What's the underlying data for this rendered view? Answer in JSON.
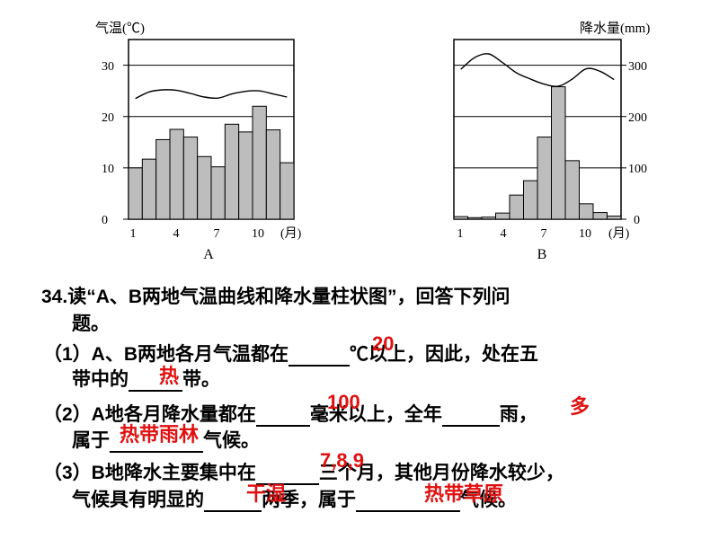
{
  "chart_data": [
    {
      "type": "bar",
      "label": "A",
      "ylabel_left": "气温(℃)",
      "xlabel": "(月)",
      "ylim": [
        0,
        30
      ],
      "yticks": [
        "0",
        "10",
        "20",
        "30"
      ],
      "xticks": [
        "1",
        "4",
        "7",
        "10"
      ],
      "categories": [
        "1",
        "2",
        "3",
        "4",
        "5",
        "6",
        "7",
        "8",
        "9",
        "10",
        "11",
        "12"
      ],
      "precipitation_mm": [
        10,
        11.7,
        15.5,
        17.5,
        16,
        12.2,
        10.2,
        18.5,
        17,
        22,
        17.4,
        11
      ],
      "temperature_c": [
        23.5,
        24.8,
        25.2,
        25.1,
        24.5,
        23.8,
        23.6,
        24.4,
        24.9,
        25,
        24.4,
        23.8
      ]
    },
    {
      "type": "bar",
      "label": "B",
      "ylabel_right": "降水量(mm)",
      "xlabel": "(月)",
      "ylim": [
        0,
        300
      ],
      "yticks": [
        "0",
        "100",
        "200",
        "300"
      ],
      "xticks": [
        "1",
        "4",
        "7",
        "10"
      ],
      "categories": [
        "1",
        "2",
        "3",
        "4",
        "5",
        "6",
        "7",
        "8",
        "9",
        "10",
        "11",
        "12"
      ],
      "precipitation_mm": [
        5,
        3,
        4,
        12,
        47,
        75,
        160,
        258,
        114,
        30,
        13,
        6
      ],
      "temperature_c": [
        29.2,
        31.5,
        32.2,
        30.5,
        28.5,
        27.3,
        26.3,
        25.9,
        27.3,
        29.3,
        28.8,
        27.2
      ]
    }
  ],
  "question": {
    "number": "34.",
    "stem_1": "读“A、B两地气温曲线和降水量柱状图”，回答下列问",
    "stem_2": "题。",
    "q1_a": "（1）A、B两地各月气温都在",
    "q1_b": "℃以上，因此，处在五",
    "q1_c": "带中的",
    "q1_d": "带。",
    "q2_a": "（2）A地各月降水量都在",
    "q2_b": "毫米以上，全年",
    "q2_c": "雨，",
    "q2_d": "属于",
    "q2_e": "气候。",
    "q3_a": "（3）B地降水主要集中在",
    "q3_b": "三个月，其他月份降水较少，",
    "q3_c": "气候具有明显的",
    "q3_d": "两季，属于",
    "q3_e": "气候。"
  },
  "answers": {
    "a1": "20",
    "a2": "热",
    "a3": "100",
    "a4": "多",
    "a5": "热带雨林",
    "a6": "7,8,9",
    "a7": "干湿",
    "a8": "热带草原"
  },
  "colors": {
    "bar_fill": "#bdbdbd",
    "answer": "#e01010"
  }
}
